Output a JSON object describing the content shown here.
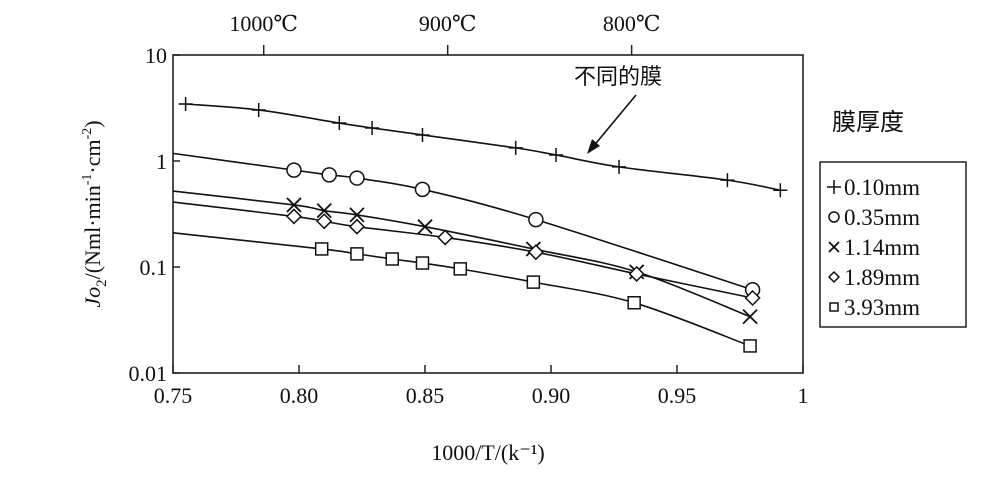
{
  "chart_data": {
    "type": "scatter",
    "title": "",
    "xlabel": "1000/T/(k⁻¹)",
    "ylabel_parts": {
      "main": "Jo",
      "sub": "2",
      "rest": "/(Nml·min",
      "sup1": "-1",
      "mid": "·cm",
      "sup2": "-2",
      "end": ")"
    },
    "xlim": [
      0.75,
      1.0
    ],
    "ylim": [
      0.01,
      10
    ],
    "yscale": "log",
    "x_ticks": [
      "0.75",
      "0.80",
      "0.85",
      "0.90",
      "0.95",
      "1"
    ],
    "x_tick_values": [
      0.75,
      0.8,
      0.85,
      0.9,
      0.95,
      1.0
    ],
    "y_ticks": [
      "10",
      "1",
      "0.1",
      "0.01"
    ],
    "y_tick_values": [
      10,
      1,
      0.1,
      0.01
    ],
    "top_axis": [
      {
        "label": "1000℃",
        "x": 0.786
      },
      {
        "label": "900℃",
        "x": 0.859
      },
      {
        "label": "800℃",
        "x": 0.932
      }
    ],
    "annotation": "不同的膜",
    "legend_title": "膜厚度",
    "legend_placement": "right",
    "series": [
      {
        "name": "0.10mm",
        "symbol": "+",
        "marker": "plus",
        "fit_start": [
          0.755,
          3.45
        ],
        "x": [
          0.755,
          0.784,
          0.816,
          0.829,
          0.849,
          0.886,
          0.902,
          0.927,
          0.97,
          0.991
        ],
        "y": [
          3.45,
          3.03,
          2.28,
          2.05,
          1.76,
          1.33,
          1.14,
          0.88,
          0.66,
          0.53
        ]
      },
      {
        "name": "0.35mm",
        "symbol": "○",
        "marker": "circle",
        "fit_start": [
          0.75,
          1.18
        ],
        "x": [
          0.798,
          0.812,
          0.823,
          0.849,
          0.894,
          0.98
        ],
        "y": [
          0.82,
          0.74,
          0.69,
          0.54,
          0.28,
          0.061
        ]
      },
      {
        "name": "1.14mm",
        "symbol": "×",
        "marker": "cross",
        "fit_start": [
          0.75,
          0.52
        ],
        "x": [
          0.798,
          0.81,
          0.823,
          0.85,
          0.893,
          0.934,
          0.979
        ],
        "y": [
          0.385,
          0.34,
          0.31,
          0.24,
          0.148,
          0.09,
          0.034
        ]
      },
      {
        "name": "1.89mm",
        "symbol": "◇",
        "marker": "diamond",
        "fit_start": [
          0.75,
          0.41
        ],
        "x": [
          0.798,
          0.81,
          0.823,
          0.858,
          0.894,
          0.934,
          0.98
        ],
        "y": [
          0.3,
          0.27,
          0.24,
          0.19,
          0.138,
          0.086,
          0.051
        ]
      },
      {
        "name": "3.93mm",
        "symbol": "□",
        "marker": "square",
        "fit_start": [
          0.75,
          0.21
        ],
        "x": [
          0.809,
          0.823,
          0.837,
          0.849,
          0.864,
          0.893,
          0.933,
          0.979
        ],
        "y": [
          0.148,
          0.133,
          0.119,
          0.109,
          0.096,
          0.072,
          0.046,
          0.018
        ]
      }
    ]
  }
}
